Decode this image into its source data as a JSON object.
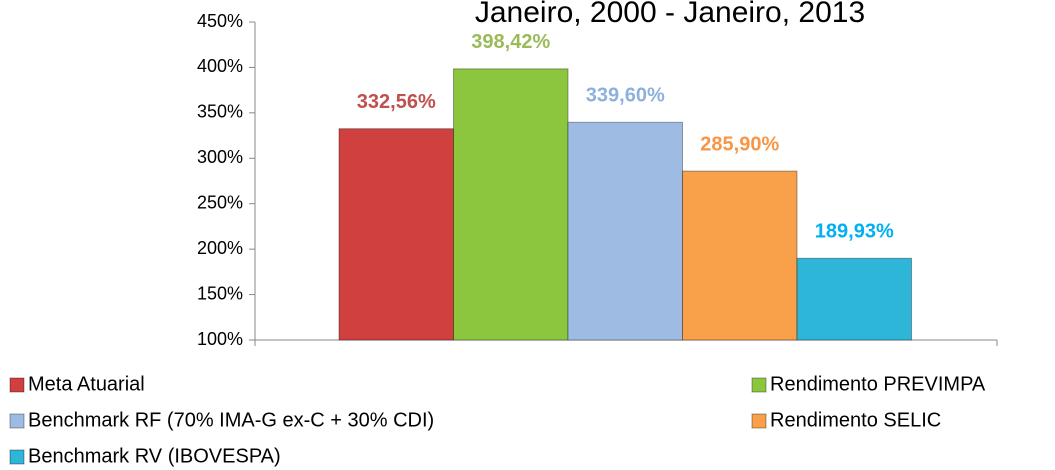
{
  "chart_data": {
    "type": "bar",
    "title": "Janeiro, 2000 - Janeiro, 2013",
    "series": [
      {
        "name": "Meta Atuarial",
        "color": "#d0403f",
        "label_color": "#c0504d",
        "values": [
          332.56
        ],
        "value_labels": [
          "332,56%"
        ]
      },
      {
        "name": "Rendimento PREVIMPA",
        "color": "#8cc63f",
        "label_color": "#9bbb59",
        "values": [
          398.42
        ],
        "value_labels": [
          "398,42%"
        ]
      },
      {
        "name": "Benchmark RF (70% IMA-G ex-C + 30% CDI)",
        "color": "#9dbbe3",
        "label_color": "#8eb0dc",
        "values": [
          339.6
        ],
        "value_labels": [
          "339,60%"
        ]
      },
      {
        "name": "Rendimento SELIC",
        "color": "#f8a04a",
        "label_color": "#f79646",
        "values": [
          285.9
        ],
        "value_labels": [
          "285,90%"
        ]
      },
      {
        "name": "Benchmark RV (IBOVESPA)",
        "color": "#2db6d8",
        "label_color": "#00b0f0",
        "values": [
          189.93
        ],
        "value_labels": [
          "189,93%"
        ]
      }
    ],
    "ylim": [
      100,
      450
    ],
    "yticks": [
      {
        "value": 100,
        "label": "100%"
      },
      {
        "value": 150,
        "label": "150%"
      },
      {
        "value": 200,
        "label": "200%"
      },
      {
        "value": 250,
        "label": "250%"
      },
      {
        "value": 300,
        "label": "300%"
      },
      {
        "value": 350,
        "label": "350%"
      },
      {
        "value": 400,
        "label": "400%"
      },
      {
        "value": 450,
        "label": "450%"
      }
    ],
    "legend": "bottom"
  }
}
